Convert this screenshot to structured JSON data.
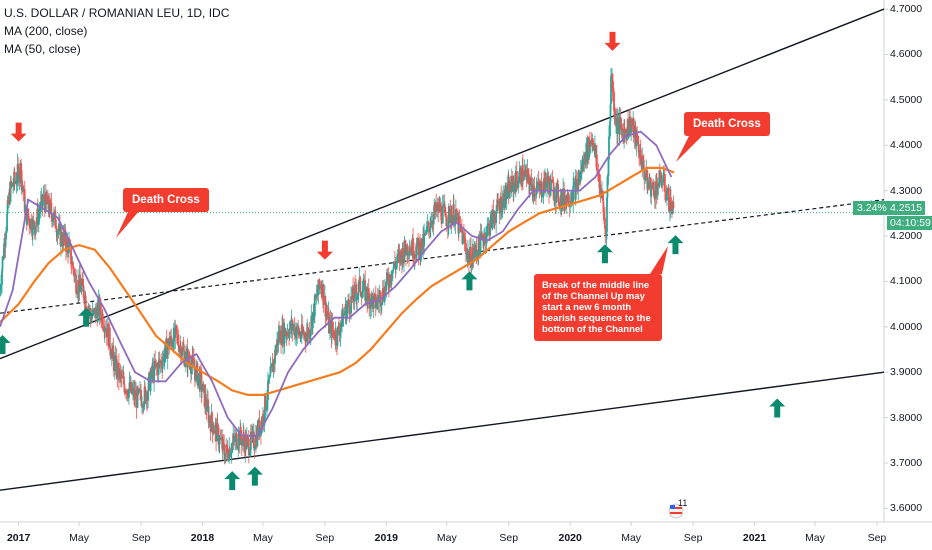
{
  "legend": {
    "title": "U.S. DOLLAR / ROMANIAN LEU, 1D, IDC",
    "ma200": "MA (200, close)",
    "ma50": "MA (50, close)"
  },
  "price_axis": {
    "labels": [
      "4.7000",
      "4.6000",
      "4.5000",
      "4.4000",
      "4.3000",
      "4.2000",
      "4.1000",
      "4.0000",
      "3.9000",
      "3.8000",
      "3.7000",
      "3.6000"
    ],
    "last_price": "4.2515",
    "last_change": "3.24%",
    "countdown": "04:10:59"
  },
  "time_axis": {
    "labels": [
      {
        "text": "2017",
        "year": true
      },
      {
        "text": "May",
        "year": false
      },
      {
        "text": "Sep",
        "year": false
      },
      {
        "text": "2018",
        "year": true
      },
      {
        "text": "May",
        "year": false
      },
      {
        "text": "Sep",
        "year": false
      },
      {
        "text": "2019",
        "year": true
      },
      {
        "text": "May",
        "year": false
      },
      {
        "text": "Sep",
        "year": false
      },
      {
        "text": "2020",
        "year": true
      },
      {
        "text": "May",
        "year": false
      },
      {
        "text": "Sep",
        "year": false
      },
      {
        "text": "2021",
        "year": true
      },
      {
        "text": "May",
        "year": false
      },
      {
        "text": "Sep",
        "year": false
      }
    ]
  },
  "annotations": {
    "death_cross_1": "Death Cross",
    "death_cross_2": "Death Cross",
    "break_note": "Break of the middle line of the Channel Up may start a new 6 month bearish sequence to the bottom of the Channel"
  },
  "badge": "11",
  "colors": {
    "up_candle": "#26a69a",
    "down_candle": "#ef5350",
    "ma200": "#f57c1f",
    "ma50": "#8e6bbf",
    "callout": "#f23c2f",
    "up_arrow": "#0b8a6e",
    "down_arrow": "#f23c2f"
  },
  "chart_data": {
    "type": "candlestick",
    "symbol": "USDRON",
    "ylim": [
      3.57,
      4.72
    ],
    "x_range": [
      "2016-11-25",
      "2021-09-15"
    ],
    "close": [
      [
        "2016-11-25",
        4.08
      ],
      [
        "2016-12-05",
        4.2
      ],
      [
        "2016-12-15",
        4.3
      ],
      [
        "2016-12-28",
        4.33
      ],
      [
        "2017-01-05",
        4.35
      ],
      [
        "2017-01-15",
        4.25
      ],
      [
        "2017-02-01",
        4.22
      ],
      [
        "2017-02-20",
        4.28
      ],
      [
        "2017-03-10",
        4.25
      ],
      [
        "2017-03-25",
        4.2
      ],
      [
        "2017-04-10",
        4.18
      ],
      [
        "2017-04-25",
        4.1
      ],
      [
        "2017-05-10",
        4.08
      ],
      [
        "2017-05-25",
        4.02
      ],
      [
        "2017-06-10",
        4.04
      ],
      [
        "2017-06-25",
        4.0
      ],
      [
        "2017-07-10",
        3.92
      ],
      [
        "2017-07-25",
        3.88
      ],
      [
        "2017-08-10",
        3.86
      ],
      [
        "2017-08-25",
        3.84
      ],
      [
        "2017-09-10",
        3.85
      ],
      [
        "2017-09-25",
        3.9
      ],
      [
        "2017-10-10",
        3.92
      ],
      [
        "2017-10-25",
        3.96
      ],
      [
        "2017-11-10",
        3.98
      ],
      [
        "2017-11-25",
        3.94
      ],
      [
        "2017-12-10",
        3.92
      ],
      [
        "2017-12-28",
        3.88
      ],
      [
        "2018-01-15",
        3.8
      ],
      [
        "2018-02-01",
        3.76
      ],
      [
        "2018-02-15",
        3.72
      ],
      [
        "2018-03-01",
        3.74
      ],
      [
        "2018-03-15",
        3.76
      ],
      [
        "2018-04-01",
        3.74
      ],
      [
        "2018-04-15",
        3.75
      ],
      [
        "2018-05-01",
        3.8
      ],
      [
        "2018-05-15",
        3.88
      ],
      [
        "2018-06-01",
        3.98
      ],
      [
        "2018-06-15",
        3.99
      ],
      [
        "2018-07-01",
        4.0
      ],
      [
        "2018-07-15",
        3.98
      ],
      [
        "2018-08-01",
        3.99
      ],
      [
        "2018-08-15",
        4.06
      ],
      [
        "2018-08-25",
        4.1
      ],
      [
        "2018-09-10",
        4.0
      ],
      [
        "2018-09-25",
        3.98
      ],
      [
        "2018-10-10",
        4.03
      ],
      [
        "2018-10-25",
        4.06
      ],
      [
        "2018-11-10",
        4.09
      ],
      [
        "2018-11-25",
        4.07
      ],
      [
        "2018-12-10",
        4.05
      ],
      [
        "2018-12-28",
        4.08
      ],
      [
        "2019-01-15",
        4.13
      ],
      [
        "2019-02-01",
        4.16
      ],
      [
        "2019-02-15",
        4.18
      ],
      [
        "2019-03-01",
        4.17
      ],
      [
        "2019-03-15",
        4.18
      ],
      [
        "2019-04-01",
        4.24
      ],
      [
        "2019-04-15",
        4.26
      ],
      [
        "2019-05-01",
        4.24
      ],
      [
        "2019-05-15",
        4.25
      ],
      [
        "2019-06-01",
        4.2
      ],
      [
        "2019-06-15",
        4.15
      ],
      [
        "2019-07-01",
        4.17
      ],
      [
        "2019-07-15",
        4.2
      ],
      [
        "2019-08-01",
        4.24
      ],
      [
        "2019-08-15",
        4.27
      ],
      [
        "2019-09-01",
        4.3
      ],
      [
        "2019-09-15",
        4.32
      ],
      [
        "2019-10-01",
        4.34
      ],
      [
        "2019-10-15",
        4.31
      ],
      [
        "2019-11-01",
        4.3
      ],
      [
        "2019-11-15",
        4.32
      ],
      [
        "2019-12-01",
        4.3
      ],
      [
        "2019-12-15",
        4.28
      ],
      [
        "2020-01-01",
        4.29
      ],
      [
        "2020-01-15",
        4.31
      ],
      [
        "2020-02-01",
        4.38
      ],
      [
        "2020-02-15",
        4.42
      ],
      [
        "2020-02-25",
        4.34
      ],
      [
        "2020-03-05",
        4.28
      ],
      [
        "2020-03-12",
        4.2
      ],
      [
        "2020-03-23",
        4.56
      ],
      [
        "2020-04-01",
        4.45
      ],
      [
        "2020-04-15",
        4.43
      ],
      [
        "2020-05-01",
        4.45
      ],
      [
        "2020-05-15",
        4.4
      ],
      [
        "2020-06-01",
        4.32
      ],
      [
        "2020-06-15",
        4.3
      ],
      [
        "2020-07-01",
        4.33
      ],
      [
        "2020-07-15",
        4.28
      ],
      [
        "2020-07-25",
        4.25
      ]
    ],
    "ma50": [
      [
        "2016-11-25",
        4.0
      ],
      [
        "2016-12-20",
        4.08
      ],
      [
        "2017-01-20",
        4.28
      ],
      [
        "2017-02-20",
        4.26
      ],
      [
        "2017-03-20",
        4.24
      ],
      [
        "2017-04-20",
        4.17
      ],
      [
        "2017-05-20",
        4.1
      ],
      [
        "2017-06-20",
        4.04
      ],
      [
        "2017-07-20",
        3.97
      ],
      [
        "2017-08-20",
        3.9
      ],
      [
        "2017-09-20",
        3.88
      ],
      [
        "2017-10-20",
        3.88
      ],
      [
        "2017-11-20",
        3.92
      ],
      [
        "2017-12-20",
        3.94
      ],
      [
        "2018-01-20",
        3.88
      ],
      [
        "2018-02-20",
        3.8
      ],
      [
        "2018-03-20",
        3.76
      ],
      [
        "2018-04-20",
        3.76
      ],
      [
        "2018-05-20",
        3.82
      ],
      [
        "2018-06-20",
        3.9
      ],
      [
        "2018-07-20",
        3.95
      ],
      [
        "2018-08-20",
        3.99
      ],
      [
        "2018-09-20",
        4.02
      ],
      [
        "2018-10-20",
        4.02
      ],
      [
        "2018-11-20",
        4.05
      ],
      [
        "2018-12-20",
        4.06
      ],
      [
        "2019-01-20",
        4.09
      ],
      [
        "2019-02-20",
        4.13
      ],
      [
        "2019-03-20",
        4.17
      ],
      [
        "2019-04-20",
        4.21
      ],
      [
        "2019-05-20",
        4.23
      ],
      [
        "2019-06-20",
        4.2
      ],
      [
        "2019-07-20",
        4.19
      ],
      [
        "2019-08-20",
        4.21
      ],
      [
        "2019-09-20",
        4.26
      ],
      [
        "2019-10-20",
        4.3
      ],
      [
        "2019-11-20",
        4.3
      ],
      [
        "2019-12-20",
        4.3
      ],
      [
        "2020-01-20",
        4.3
      ],
      [
        "2020-02-20",
        4.33
      ],
      [
        "2020-03-20",
        4.38
      ],
      [
        "2020-04-20",
        4.42
      ],
      [
        "2020-05-20",
        4.43
      ],
      [
        "2020-06-20",
        4.4
      ],
      [
        "2020-07-20",
        4.33
      ]
    ],
    "ma200": [
      [
        "2016-11-25",
        4.01
      ],
      [
        "2017-01-01",
        4.05
      ],
      [
        "2017-02-01",
        4.1
      ],
      [
        "2017-03-01",
        4.14
      ],
      [
        "2017-04-01",
        4.17
      ],
      [
        "2017-05-01",
        4.18
      ],
      [
        "2017-06-01",
        4.17
      ],
      [
        "2017-07-01",
        4.13
      ],
      [
        "2017-08-01",
        4.08
      ],
      [
        "2017-09-01",
        4.03
      ],
      [
        "2017-10-01",
        3.98
      ],
      [
        "2017-11-01",
        3.95
      ],
      [
        "2017-12-01",
        3.92
      ],
      [
        "2018-01-01",
        3.9
      ],
      [
        "2018-02-01",
        3.88
      ],
      [
        "2018-03-01",
        3.86
      ],
      [
        "2018-04-01",
        3.85
      ],
      [
        "2018-05-01",
        3.85
      ],
      [
        "2018-06-01",
        3.86
      ],
      [
        "2018-07-01",
        3.87
      ],
      [
        "2018-08-01",
        3.88
      ],
      [
        "2018-09-01",
        3.89
      ],
      [
        "2018-10-01",
        3.9
      ],
      [
        "2018-11-01",
        3.92
      ],
      [
        "2018-12-01",
        3.95
      ],
      [
        "2019-01-01",
        3.99
      ],
      [
        "2019-02-01",
        4.03
      ],
      [
        "2019-03-01",
        4.06
      ],
      [
        "2019-04-01",
        4.09
      ],
      [
        "2019-05-01",
        4.11
      ],
      [
        "2019-06-01",
        4.13
      ],
      [
        "2019-07-01",
        4.15
      ],
      [
        "2019-08-01",
        4.18
      ],
      [
        "2019-09-01",
        4.21
      ],
      [
        "2019-10-01",
        4.23
      ],
      [
        "2019-11-01",
        4.25
      ],
      [
        "2019-12-01",
        4.26
      ],
      [
        "2020-01-01",
        4.27
      ],
      [
        "2020-02-01",
        4.28
      ],
      [
        "2020-03-01",
        4.29
      ],
      [
        "2020-04-01",
        4.31
      ],
      [
        "2020-05-01",
        4.33
      ],
      [
        "2020-06-01",
        4.35
      ],
      [
        "2020-07-01",
        4.35
      ],
      [
        "2020-07-25",
        4.34
      ]
    ],
    "channel": {
      "top": [
        [
          "2016-11-25",
          3.93
        ],
        [
          "2021-09-15",
          4.7
        ]
      ],
      "middle": [
        [
          "2016-11-25",
          4.03
        ],
        [
          "2021-09-15",
          4.28
        ]
      ],
      "bottom": [
        [
          "2016-11-25",
          3.64
        ],
        [
          "2021-09-15",
          3.9
        ]
      ]
    },
    "arrows": [
      {
        "date": "2016-11-30",
        "price": 3.96,
        "dir": "up"
      },
      {
        "date": "2017-01-01",
        "price": 4.43,
        "dir": "down"
      },
      {
        "date": "2017-05-15",
        "price": 4.02,
        "dir": "up"
      },
      {
        "date": "2018-03-01",
        "price": 3.66,
        "dir": "up"
      },
      {
        "date": "2018-04-15",
        "price": 3.67,
        "dir": "up"
      },
      {
        "date": "2018-09-01",
        "price": 4.17,
        "dir": "down"
      },
      {
        "date": "2019-06-15",
        "price": 4.1,
        "dir": "up"
      },
      {
        "date": "2020-03-10",
        "price": 4.16,
        "dir": "up"
      },
      {
        "date": "2020-03-25",
        "price": 4.63,
        "dir": "down"
      },
      {
        "date": "2020-07-28",
        "price": 4.18,
        "dir": "up"
      },
      {
        "date": "2021-02-15",
        "price": 3.82,
        "dir": "up"
      }
    ]
  }
}
